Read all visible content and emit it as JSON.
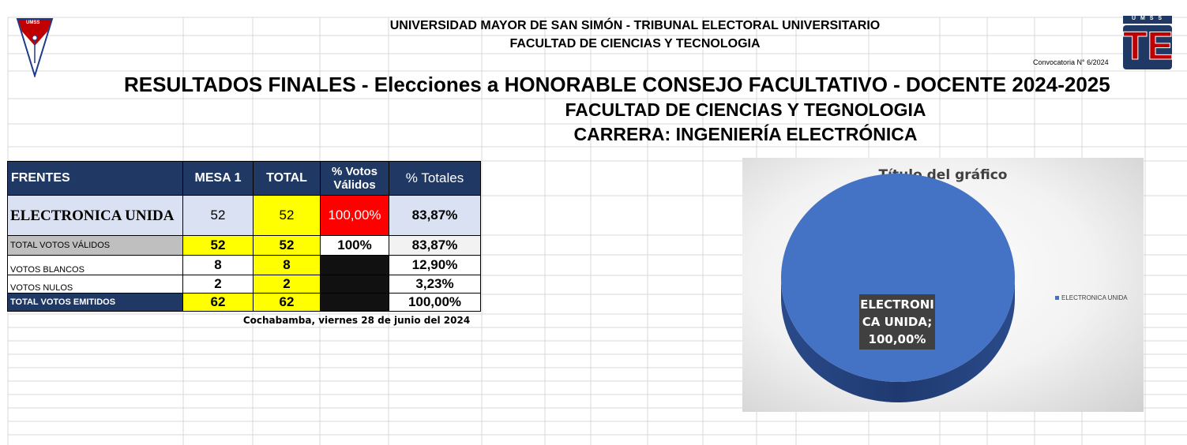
{
  "header": {
    "line1": "UNIVERSIDAD MAYOR DE SAN SIMÓN - TRIBUNAL ELECTORAL UNIVERSITARIO",
    "line2": "FACULTAD DE CIENCIAS Y TECNOLOGIA",
    "convocatoria": "Convocatoria N° 6/2024",
    "title": "RESULTADOS FINALES - Elecciones a HONORABLE CONSEJO FACULTATIVO - DOCENTE 2024-2025",
    "faculty": "FACULTAD DE CIENCIAS Y TEGNOLOGIA",
    "career": "CARRERA: INGENIERÍA ELECTRÓNICA"
  },
  "logos": {
    "left_text": "UMSS",
    "right_top": "U M S S",
    "right_main": "TE"
  },
  "table": {
    "headers": [
      "FRENTES",
      "MESA 1",
      "TOTAL",
      "% Votos Válidos",
      "% Totales"
    ],
    "rows": [
      {
        "label": "ELECTRONICA UNIDA",
        "mesa1": "52",
        "total": "52",
        "pct_validos": "100,00%",
        "pct_totales": "83,87%"
      },
      {
        "label": "TOTAL VOTOS VÁLIDOS",
        "mesa1": "52",
        "total": "52",
        "pct_validos": "100%",
        "pct_totales": "83,87%"
      },
      {
        "label": "VOTOS BLANCOS",
        "mesa1": "8",
        "total": "8",
        "pct_validos": "",
        "pct_totales": "12,90%"
      },
      {
        "label": "VOTOS NULOS",
        "mesa1": "2",
        "total": "2",
        "pct_validos": "",
        "pct_totales": "3,23%"
      },
      {
        "label": "TOTAL VOTOS EMITIDOS",
        "mesa1": "62",
        "total": "62",
        "pct_validos": "",
        "pct_totales": "100,00%"
      }
    ],
    "date_line": "Cochabamba, viernes 28 de junio del 2024"
  },
  "chart_data": {
    "type": "pie",
    "title": "Título del gráfico",
    "categories": [
      "ELECTRONICA UNIDA"
    ],
    "values": [
      100
    ],
    "data_label": "ELECTRONI CA UNIDA; 100,00%",
    "legend": [
      "ELECTRONICA UNIDA"
    ],
    "legend_position": "right",
    "colors": [
      "#4472c4"
    ]
  },
  "colors": {
    "header_dark": "#1f3864",
    "yellow": "#ffff00",
    "red": "#ff0000",
    "pie_blue": "#4472c4"
  }
}
